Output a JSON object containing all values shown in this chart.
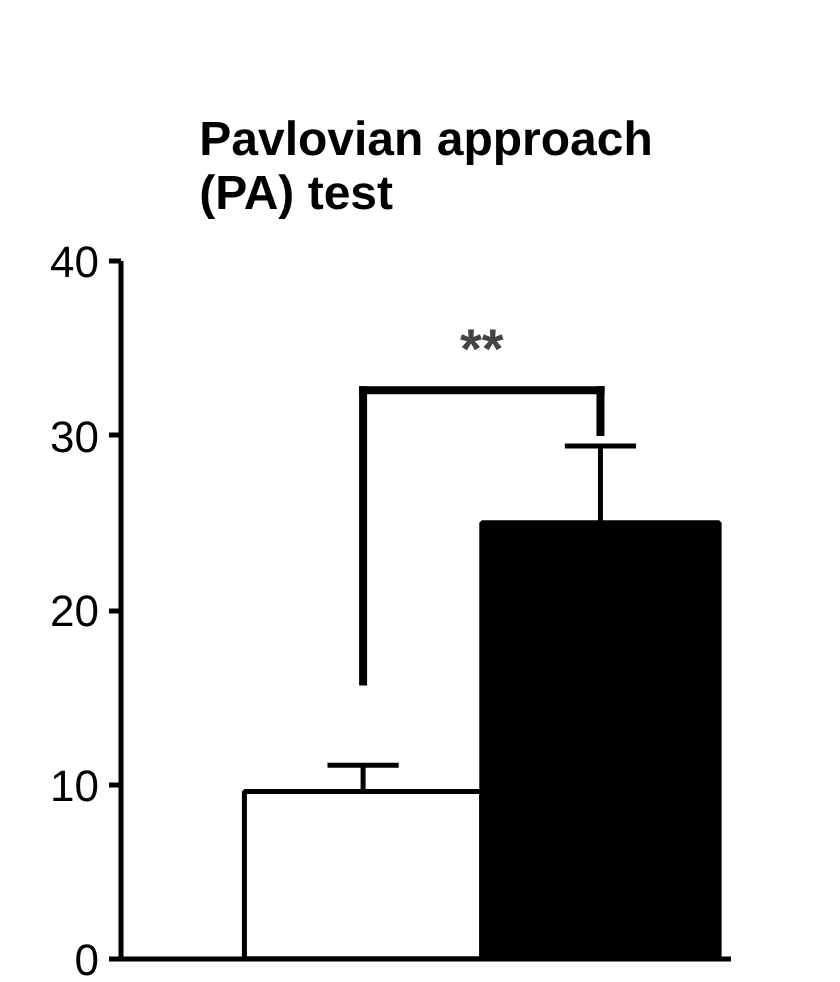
{
  "chart_data": {
    "type": "bar",
    "title": "Pavlovian approach\n(PA) test",
    "categories": [
      null,
      null
    ],
    "values": [
      9.6,
      25
    ],
    "colors": [
      "#ffffff",
      "#000000"
    ],
    "errors": [
      [
        9.6,
        11.1
      ],
      [
        25,
        29.4
      ]
    ],
    "ylim": [
      0,
      40
    ],
    "yticks": [
      0,
      10,
      20,
      30,
      40
    ],
    "grid": false,
    "tick_labels": "y",
    "annotations": [
      "**"
    ]
  }
}
